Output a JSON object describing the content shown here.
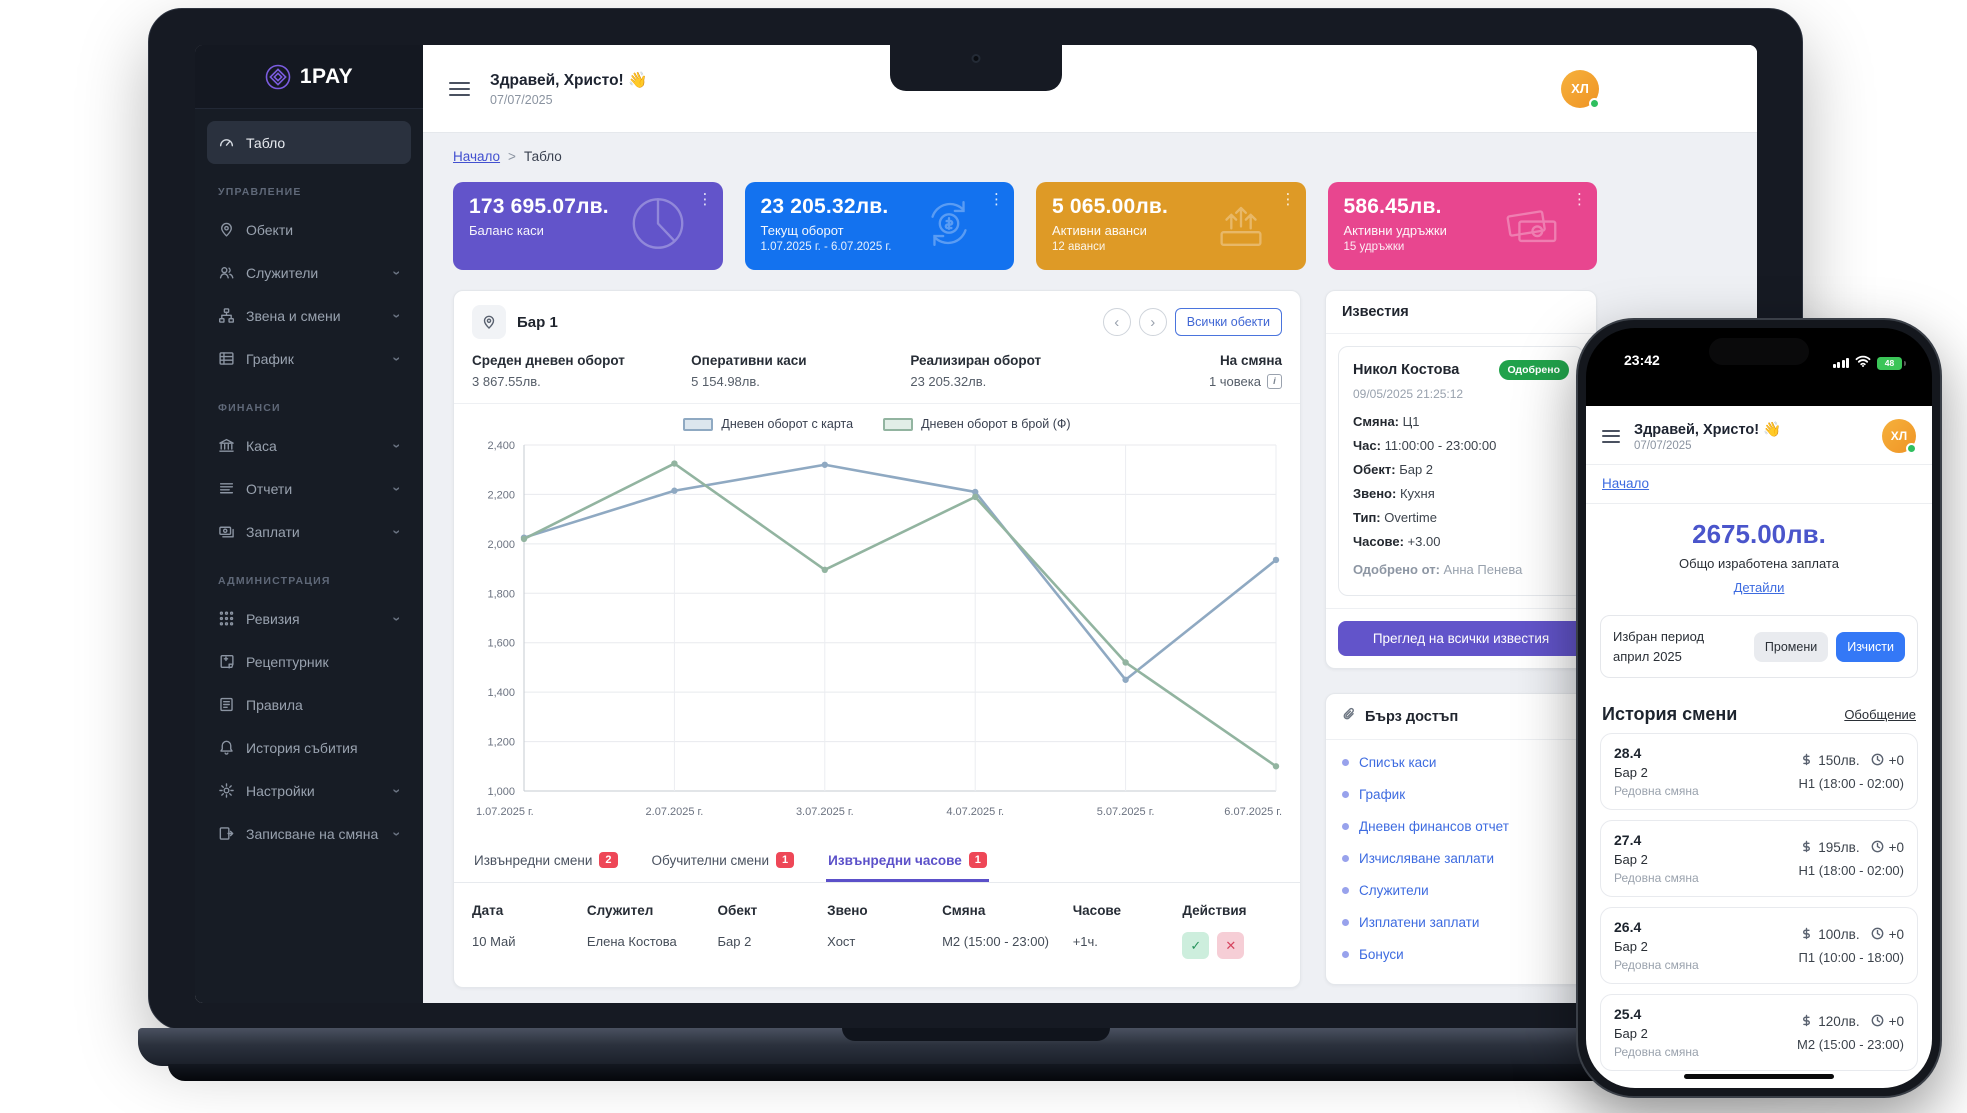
{
  "app": {
    "logo": "1PAY"
  },
  "sidebar": {
    "items": [
      {
        "type": "item",
        "label": "Табло",
        "icon": "gauge",
        "active": true
      },
      {
        "type": "section",
        "label": "УПРАВЛЕНИЕ"
      },
      {
        "type": "item",
        "label": "Обекти",
        "icon": "pin"
      },
      {
        "type": "item",
        "label": "Служители",
        "icon": "users",
        "chevron": true
      },
      {
        "type": "item",
        "label": "Звена и смени",
        "icon": "org",
        "chevron": true
      },
      {
        "type": "item",
        "label": "График",
        "icon": "table",
        "chevron": true
      },
      {
        "type": "section",
        "label": "ФИНАНСИ"
      },
      {
        "type": "item",
        "label": "Каса",
        "icon": "bank",
        "chevron": true
      },
      {
        "type": "item",
        "label": "Отчети",
        "icon": "report",
        "chevron": true
      },
      {
        "type": "item",
        "label": "Заплати",
        "icon": "salary",
        "chevron": true
      },
      {
        "type": "section",
        "label": "АДМИНИСТРАЦИЯ"
      },
      {
        "type": "item",
        "label": "Ревизия",
        "icon": "grid",
        "chevron": true
      },
      {
        "type": "item",
        "label": "Рецептурник",
        "icon": "fileplus"
      },
      {
        "type": "item",
        "label": "Правила",
        "icon": "rules"
      },
      {
        "type": "item",
        "label": "История събития",
        "icon": "bell"
      },
      {
        "type": "item",
        "label": "Настройки",
        "icon": "gear",
        "chevron": true
      },
      {
        "type": "item",
        "label": "Записване на смяна",
        "icon": "shift",
        "chevron": true
      }
    ]
  },
  "header": {
    "greeting": "Здравей, Христо! 👋",
    "date": "07/07/2025",
    "avatar": "ХЛ"
  },
  "breadcrumb": {
    "home": "Начало",
    "separator": ">",
    "current": "Табло"
  },
  "stat_cards": [
    {
      "value": "173 695.07лв.",
      "label": "Баланс каси",
      "sub": "",
      "color": "#6254ca",
      "icon": "pie"
    },
    {
      "value": "23 205.32лв.",
      "label": "Текущ оборот",
      "sub": "1.07.2025 г. - 6.07.2025 г.",
      "color": "#1372ef",
      "icon": "cycle"
    },
    {
      "value": "5 065.00лв.",
      "label": "Активни аванси",
      "sub": "12 аванси",
      "color": "#de9a26",
      "icon": "advance"
    },
    {
      "value": "586.45лв.",
      "label": "Активни удръжки",
      "sub": "15 удръжки",
      "color": "#e8468f",
      "icon": "banknotes"
    }
  ],
  "panel": {
    "location": "Бар 1",
    "all_objects_label": "Всички обекти",
    "stats": [
      {
        "label": "Среден дневен оборот",
        "value": "3 867.55лв."
      },
      {
        "label": "Оперативни каси",
        "value": "5 154.98лв."
      },
      {
        "label": "Реализиран оборот",
        "value": "23 205.32лв."
      },
      {
        "label": "На смяна",
        "value": "1 човека",
        "info": true
      }
    ]
  },
  "chart_data": {
    "type": "line",
    "x": [
      "1.07.2025 г.",
      "2.07.2025 г.",
      "3.07.2025 г.",
      "4.07.2025 г.",
      "5.07.2025 г.",
      "6.07.2025 г."
    ],
    "series": [
      {
        "name": "Дневен оборот с карта",
        "color": "#8fa9c2",
        "fill": "#dce6ee",
        "values": [
          2025,
          2215,
          2320,
          2210,
          1450,
          1935
        ]
      },
      {
        "name": "Дневен оборот в брой (Ф)",
        "color": "#92b4a0",
        "fill": "#e2eee7",
        "values": [
          2020,
          2325,
          1895,
          2190,
          1520,
          1100
        ]
      }
    ],
    "ylim": [
      1000,
      2400
    ],
    "ytick": 200,
    "grid": true,
    "legend_position": "top"
  },
  "tabs": [
    {
      "label": "Извънредни смени",
      "count": "2",
      "active": false
    },
    {
      "label": "Обучителни смени",
      "count": "1",
      "active": false
    },
    {
      "label": "Извънредни часове",
      "count": "1",
      "active": true
    }
  ],
  "table": {
    "headers": [
      "Дата",
      "Служител",
      "Обект",
      "Звено",
      "Смяна",
      "Часове",
      "Действия"
    ],
    "rows": [
      {
        "cells": [
          "10 Май",
          "Елена Костова",
          "Бар 2",
          "Хост",
          "М2 (15:00 - 23:00)",
          "+1ч."
        ]
      }
    ]
  },
  "notifications": {
    "title": "Известия",
    "item": {
      "name": "Никол Костова",
      "badge": "Одобрено",
      "datetime": "09/05/2025 21:25:12",
      "details": [
        {
          "label": "Смяна:",
          "value": "Ц1"
        },
        {
          "label": "Час:",
          "value": "11:00:00 - 23:00:00"
        },
        {
          "label": "Обект:",
          "value": "Бар 2"
        },
        {
          "label": "Звено:",
          "value": "Кухня"
        },
        {
          "label": "Тип:",
          "value": "Overtime"
        },
        {
          "label": "Часове:",
          "value": "+3.00"
        }
      ],
      "approved_label": "Одобрено от:",
      "approved_value": "Анна Пенева"
    },
    "view_all_label": "Преглед на всички известия"
  },
  "quick_access": {
    "title": "Бърз достъп",
    "links": [
      "Списък каси",
      "График",
      "Дневен финансов отчет",
      "Изчисляване заплати",
      "Служители",
      "Изплатени заплати",
      "Бонуси"
    ]
  },
  "phone": {
    "status": {
      "time": "23:42",
      "battery": "48"
    },
    "header": {
      "greeting": "Здравей, Христо! 👋",
      "date": "07/07/2025",
      "avatar": "ХЛ"
    },
    "nav_link": "Начало",
    "salary": {
      "amount": "2675.00лв.",
      "label": "Общо изработена заплата",
      "details_link": "Детайли"
    },
    "period": {
      "label_line1": "Избран период",
      "label_line2": "април 2025",
      "change_btn": "Промени",
      "clear_btn": "Изчисти"
    },
    "history": {
      "title": "История смени",
      "summary_link": "Обобщение",
      "items": [
        {
          "date": "28.4",
          "object": "Бар 2",
          "type": "Редовна смяна",
          "amount": "150лв.",
          "overtime": "+0",
          "shift": "Н1 (18:00 - 02:00)"
        },
        {
          "date": "27.4",
          "object": "Бар 2",
          "type": "Редовна смяна",
          "amount": "195лв.",
          "overtime": "+0",
          "shift": "Н1 (18:00 - 02:00)"
        },
        {
          "date": "26.4",
          "object": "Бар 2",
          "type": "Редовна смяна",
          "amount": "100лв.",
          "overtime": "+0",
          "shift": "П1 (10:00 - 18:00)"
        },
        {
          "date": "25.4",
          "object": "Бар 2",
          "type": "Редовна смяна",
          "amount": "120лв.",
          "overtime": "+0",
          "shift": "М2 (15:00 - 23:00)"
        }
      ]
    }
  }
}
